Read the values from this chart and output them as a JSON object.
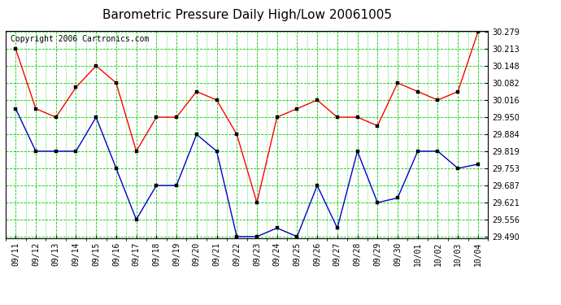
{
  "title": "Barometric Pressure Daily High/Low 20061005",
  "copyright": "Copyright 2006 Cartronics.com",
  "dates": [
    "09/11",
    "09/12",
    "09/13",
    "09/14",
    "09/15",
    "09/16",
    "09/17",
    "09/18",
    "09/19",
    "09/20",
    "09/21",
    "09/22",
    "09/23",
    "09/24",
    "09/25",
    "09/26",
    "09/27",
    "09/28",
    "09/29",
    "09/30",
    "10/01",
    "10/02",
    "10/03",
    "10/04"
  ],
  "high": [
    30.213,
    29.983,
    29.95,
    30.065,
    30.148,
    30.082,
    29.819,
    29.95,
    29.95,
    30.049,
    30.016,
    29.884,
    29.621,
    29.95,
    29.983,
    30.016,
    29.95,
    29.95,
    29.917,
    30.082,
    30.049,
    30.016,
    30.049,
    30.279
  ],
  "low": [
    29.983,
    29.819,
    29.819,
    29.819,
    29.95,
    29.753,
    29.556,
    29.687,
    29.687,
    29.884,
    29.819,
    29.49,
    29.49,
    29.523,
    29.49,
    29.687,
    29.523,
    29.819,
    29.621,
    29.639,
    29.819,
    29.819,
    29.753,
    29.769
  ],
  "high_color": "#ff0000",
  "low_color": "#0000cc",
  "bg_color": "#ffffff",
  "plot_bg_color": "#ffffff",
  "grid_color": "#00cc00",
  "border_color": "#000000",
  "ymin": 29.49,
  "ymax": 30.279,
  "ytick_values": [
    29.49,
    29.556,
    29.621,
    29.687,
    29.753,
    29.819,
    29.884,
    29.95,
    30.016,
    30.082,
    30.148,
    30.213,
    30.279
  ],
  "title_fontsize": 11,
  "copyright_fontsize": 7,
  "tick_fontsize": 7
}
